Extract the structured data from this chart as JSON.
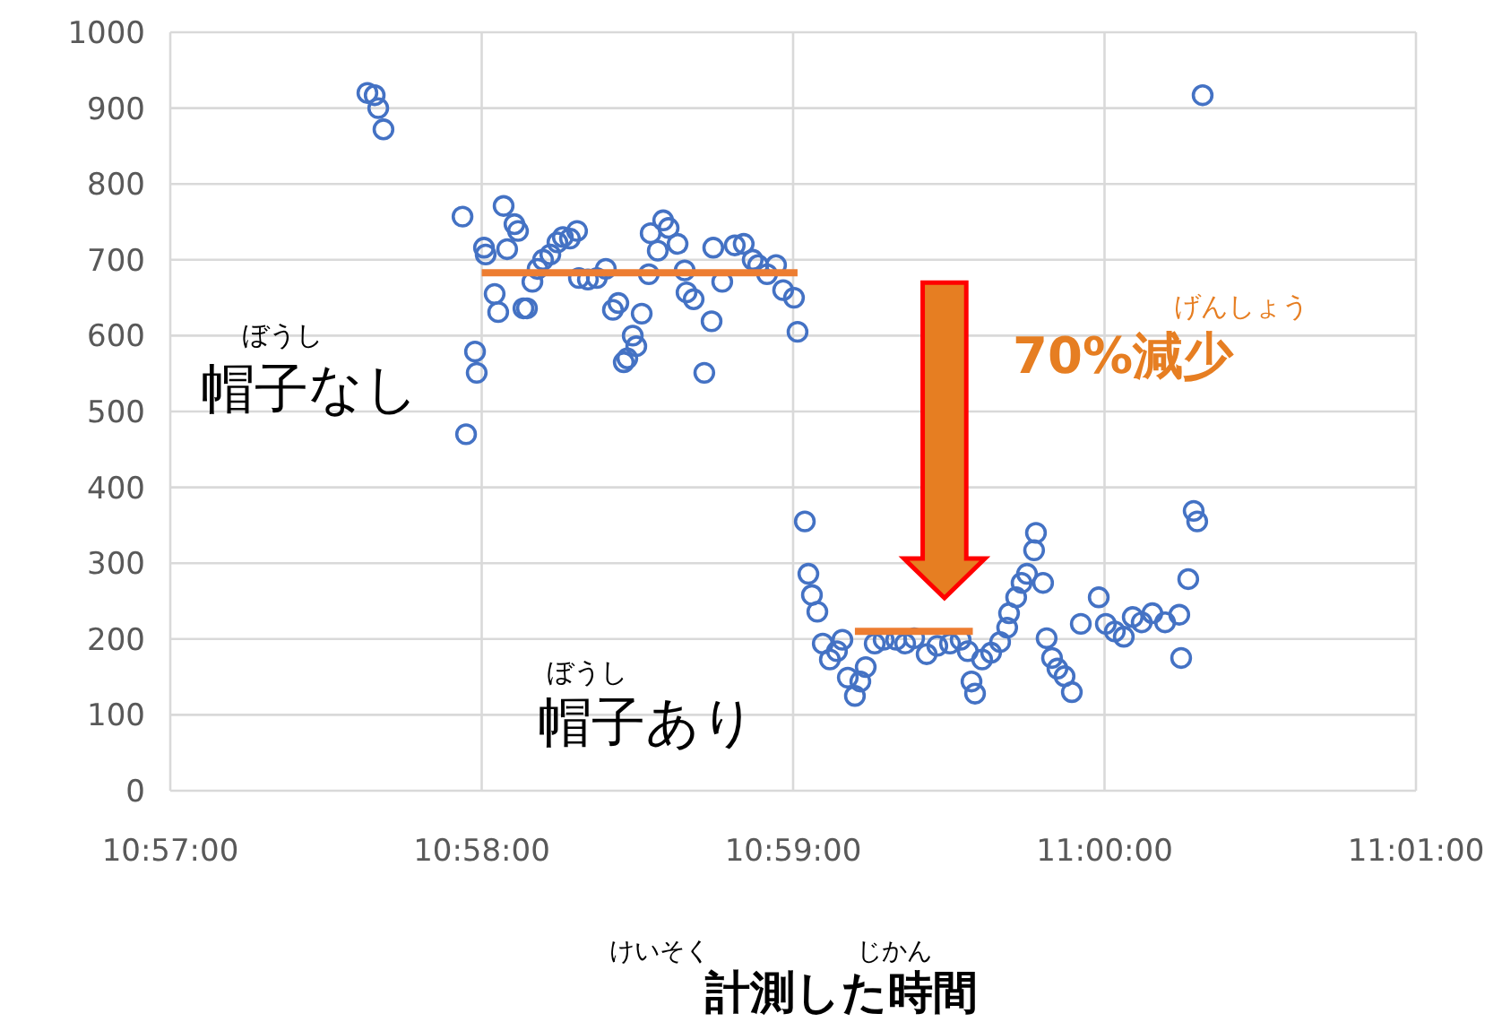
{
  "chart_data": {
    "type": "scatter",
    "xlabel": "計測した時間",
    "xlim": [
      10.95,
      11.016667
    ],
    "xticks": [
      {
        "value": 10.95,
        "label": "10:57:00"
      },
      {
        "value": 10.966667,
        "label": "10:58:00"
      },
      {
        "value": 10.983333,
        "label": "10:59:00"
      },
      {
        "value": 11.0,
        "label": "11:00:00"
      },
      {
        "value": 11.016667,
        "label": "11:01:00"
      }
    ],
    "ylim": [
      0,
      1000
    ],
    "yticks": [
      0,
      100,
      200,
      300,
      400,
      500,
      600,
      700,
      800,
      900,
      1000
    ],
    "grid": true,
    "series": [
      {
        "color": "#4472c4",
        "marker": "circle",
        "x": [
          10.96055,
          10.96094,
          10.96113,
          10.96141,
          10.96564,
          10.96631,
          10.9664,
          10.96583,
          10.96679,
          10.96688,
          10.96784,
          10.96842,
          10.96861,
          10.96803,
          10.96736,
          10.96755,
          10.9689,
          10.96909,
          10.96938,
          10.96966,
          10.96995,
          10.97034,
          10.97072,
          10.97101,
          10.97139,
          10.97177,
          10.97187,
          10.97235,
          10.97283,
          10.97331,
          10.97369,
          10.97398,
          10.97475,
          10.97494,
          10.97427,
          10.97446,
          10.97523,
          10.97571,
          10.97638,
          10.97667,
          10.97609,
          10.97715,
          10.97561,
          10.97753,
          10.97763,
          10.97801,
          10.97897,
          10.97858,
          10.97906,
          10.97954,
          10.98021,
          10.98069,
          10.98117,
          10.98146,
          10.98194,
          10.98242,
          10.9828,
          10.98338,
          10.98357,
          10.98396,
          10.98415,
          10.98434,
          10.98463,
          10.98492,
          10.9853,
          10.98568,
          10.98597,
          10.98626,
          10.98664,
          10.98693,
          10.98722,
          10.9877,
          10.98818,
          10.98885,
          10.98933,
          10.98981,
          10.99048,
          10.99105,
          10.99173,
          10.9923,
          10.99268,
          10.99288,
          10.99307,
          10.99345,
          10.99393,
          10.99441,
          10.99479,
          10.99489,
          10.99527,
          10.99556,
          10.99585,
          10.99623,
          10.99633,
          10.99671,
          10.9969,
          10.99719,
          10.99748,
          10.99786,
          10.99825,
          10.99873,
          10.99969,
          11.00007,
          11.00055,
          11.00103,
          11.00151,
          11.00199,
          11.00256,
          11.00324,
          11.004,
          11.0041,
          11.00448,
          11.00477,
          11.00496,
          11.00525
        ],
        "values": [
          920,
          917,
          900,
          872,
          757,
          579,
          551,
          470,
          716,
          707,
          771,
          747,
          738,
          714,
          655,
          631,
          636,
          636,
          671,
          688,
          700,
          707,
          723,
          730,
          728,
          738,
          676,
          674,
          676,
          688,
          634,
          643,
          600,
          586,
          565,
          570,
          629,
          735,
          752,
          742,
          712,
          721,
          681,
          686,
          657,
          648,
          619,
          551,
          716,
          671,
          719,
          721,
          700,
          693,
          681,
          693,
          660,
          650,
          605,
          355,
          286,
          258,
          236,
          194,
          173,
          184,
          199,
          149,
          125,
          144,
          163,
          194,
          199,
          199,
          194,
          201,
          180,
          191,
          194,
          199,
          184,
          144,
          128,
          173,
          182,
          196,
          215,
          234,
          255,
          274,
          286,
          317,
          340,
          274,
          201,
          175,
          161,
          151,
          130,
          220,
          255,
          220,
          210,
          203,
          229,
          222,
          234,
          222,
          232,
          175,
          279,
          369,
          355,
          917
        ]
      },
      {
        "type": "line",
        "color": "#ed7d31",
        "marker": "none",
        "x": [
          10.96667,
          10.98357
        ],
        "values": [
          683,
          683
        ]
      },
      {
        "type": "line",
        "color": "#ed7d31",
        "marker": "none",
        "x": [
          10.98664,
          10.99295
        ],
        "values": [
          210,
          210
        ]
      }
    ],
    "annotations": [
      "ぼうし",
      "帽子なし",
      "ぼうし",
      "帽子あり",
      "げんしょう",
      "70%減少",
      "けいそく",
      "じかん"
    ]
  }
}
